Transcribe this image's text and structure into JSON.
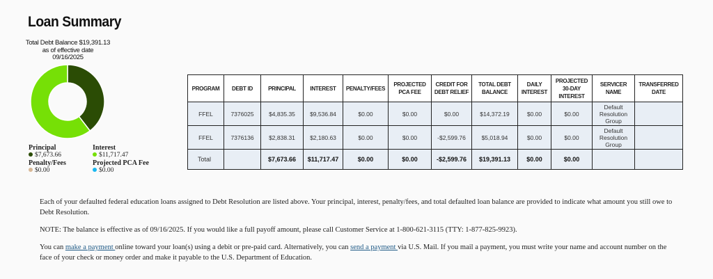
{
  "page_title": "Loan Summary",
  "balance": {
    "line1": "Total Debt Balance $19,391.13",
    "line2": "as of effective date",
    "line3": "09/16/2025"
  },
  "chart_data": {
    "type": "pie",
    "style": "donut",
    "categories": [
      "Principal",
      "Interest",
      "Penalty/Fees",
      "Projected PCA Fee"
    ],
    "values": [
      7673.66,
      11717.47,
      0,
      0
    ],
    "colors": [
      "#2b4c05",
      "#76e006",
      "#d8b896",
      "#1ab8f0"
    ]
  },
  "legend": [
    {
      "label": "Principal",
      "value": "$7,673.66",
      "color": "#2b4c05"
    },
    {
      "label": "Interest",
      "value": "$11,717.47",
      "color": "#76e006"
    },
    {
      "label": "Penalty/Fees",
      "value": "$0.00",
      "color": "#d8b896"
    },
    {
      "label": "Projected PCA Fee",
      "value": "$0.00",
      "color": "#1ab8f0"
    }
  ],
  "table": {
    "headers": [
      "PROGRAM",
      "DEBT ID",
      "PRINCIPAL",
      "INTEREST",
      "PENALTY/FEES",
      "PROJECTED PCA FEE",
      "CREDIT FOR DEBT RELIEF",
      "TOTAL DEBT BALANCE",
      "DAILY INTEREST",
      "PROJECTED 30-DAY INTEREST",
      "SERVICER NAME",
      "TRANSFERRED DATE"
    ],
    "rows": [
      [
        "FFEL",
        "7376025",
        "$4,835.35",
        "$9,536.84",
        "$0.00",
        "$0.00",
        "$0.00",
        "$14,372.19",
        "$0.00",
        "$0.00",
        "Default Resolution Group",
        ""
      ],
      [
        "FFEL",
        "7376136",
        "$2,838.31",
        "$2,180.63",
        "$0.00",
        "$0.00",
        "-$2,599.76",
        "$5,018.94",
        "$0.00",
        "$0.00",
        "Default Resolution Group",
        ""
      ]
    ],
    "total": [
      "Total",
      "",
      "$7,673.66",
      "$11,717.47",
      "$0.00",
      "$0.00",
      "-$2,599.76",
      "$19,391.13",
      "$0.00",
      "$0.00",
      "",
      ""
    ]
  },
  "text": {
    "p1": "Each of your defaulted federal education loans assigned to Debt Resolution are listed above. Your principal, interest, penalty/fees, and total defaulted loan balance are provided to indicate what amount you still owe to Debt Resolution.",
    "p2": "NOTE: The balance is effective as of 09/16/2025. If you would like a full payoff amount, please call Customer Service at 1-800-621-3115 (TTY: 1-877-825-9923).",
    "p3a": "You can ",
    "link1": "make a payment ",
    "p3b": "online toward your loan(s) using a debit or pre-paid card. Alternatively, you can ",
    "link2": "send a payment ",
    "p3c": "via U.S. Mail. If you mail a payment, you must write your name and account number on the face of your check or money order and make it payable to the U.S. Department of Education."
  }
}
